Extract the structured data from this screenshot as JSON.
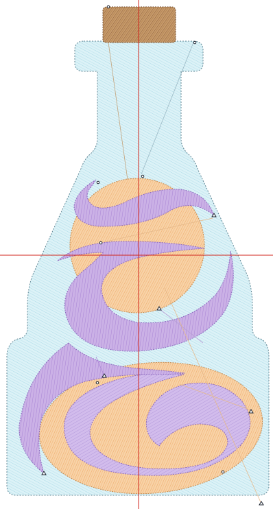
{
  "canvas": {
    "background": "#ffffff",
    "crosshair_color": "#d0251c"
  },
  "design": {
    "bottle_fill": "#dcf2f7",
    "bottle_stitch": "#a8d9e6",
    "bottle_outline": "#5f8593",
    "cork_fill": "#c69a6c",
    "cork_stitch": "#8f6035",
    "orange_fill": "#f8d3a8",
    "orange_stitch": "#eda561",
    "purple_fill": "#cbb1e6",
    "purple_stitch": "#a884d4"
  },
  "markers": {
    "node_icon": "circle-node-icon",
    "anchor_icon": "triangle-anchor-icon"
  }
}
